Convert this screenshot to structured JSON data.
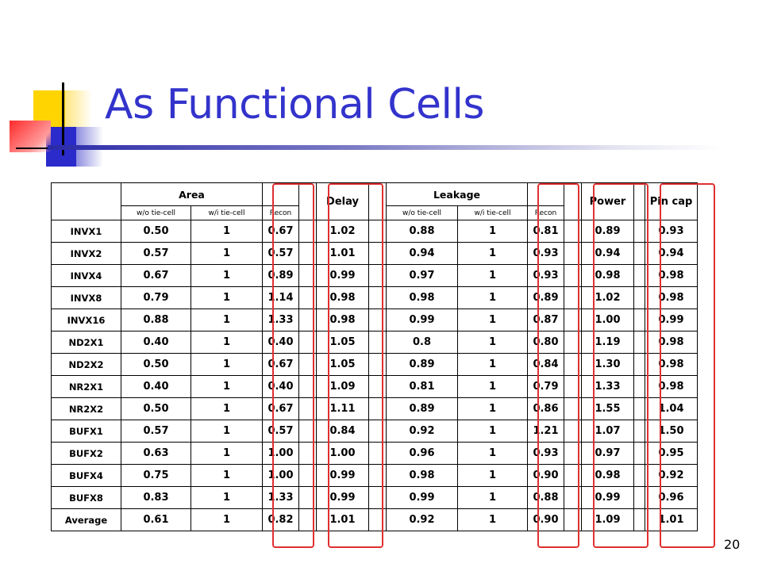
{
  "slide": {
    "title": "As Functional Cells",
    "page_number": "20"
  },
  "table": {
    "headers": {
      "area": "Area",
      "delay": "Delay",
      "leakage": "Leakage",
      "power": "Power",
      "pin_cap": "Pin cap"
    },
    "subheaders": {
      "area": [
        "w/o tie-cell",
        "w/i tie-cell",
        "Recon"
      ],
      "leakage": [
        "w/o tie-cell",
        "w/i tie-cell",
        "Recon"
      ]
    },
    "rows": [
      {
        "cell": "INVX1",
        "area_wo": "0.50",
        "area_wi": "1",
        "area_recon": "0.67",
        "delay": "1.02",
        "leak_wo": "0.88",
        "leak_wi": "1",
        "leak_recon": "0.81",
        "power": "0.89",
        "pincap": "0.93"
      },
      {
        "cell": "INVX2",
        "area_wo": "0.57",
        "area_wi": "1",
        "area_recon": "0.57",
        "delay": "1.01",
        "leak_wo": "0.94",
        "leak_wi": "1",
        "leak_recon": "0.93",
        "power": "0.94",
        "pincap": "0.94"
      },
      {
        "cell": "INVX4",
        "area_wo": "0.67",
        "area_wi": "1",
        "area_recon": "0.89",
        "delay": "0.99",
        "leak_wo": "0.97",
        "leak_wi": "1",
        "leak_recon": "0.93",
        "power": "0.98",
        "pincap": "0.98"
      },
      {
        "cell": "INVX8",
        "area_wo": "0.79",
        "area_wi": "1",
        "area_recon": "1.14",
        "delay": "0.98",
        "leak_wo": "0.98",
        "leak_wi": "1",
        "leak_recon": "0.89",
        "power": "1.02",
        "pincap": "0.98"
      },
      {
        "cell": "INVX16",
        "area_wo": "0.88",
        "area_wi": "1",
        "area_recon": "1.33",
        "delay": "0.98",
        "leak_wo": "0.99",
        "leak_wi": "1",
        "leak_recon": "0.87",
        "power": "1.00",
        "pincap": "0.99"
      },
      {
        "cell": "ND2X1",
        "area_wo": "0.40",
        "area_wi": "1",
        "area_recon": "0.40",
        "delay": "1.05",
        "leak_wo": "0.8",
        "leak_wi": "1",
        "leak_recon": "0.80",
        "power": "1.19",
        "pincap": "0.98"
      },
      {
        "cell": "ND2X2",
        "area_wo": "0.50",
        "area_wi": "1",
        "area_recon": "0.67",
        "delay": "1.05",
        "leak_wo": "0.89",
        "leak_wi": "1",
        "leak_recon": "0.84",
        "power": "1.30",
        "pincap": "0.98"
      },
      {
        "cell": "NR2X1",
        "area_wo": "0.40",
        "area_wi": "1",
        "area_recon": "0.40",
        "delay": "1.09",
        "leak_wo": "0.81",
        "leak_wi": "1",
        "leak_recon": "0.79",
        "power": "1.33",
        "pincap": "0.98"
      },
      {
        "cell": "NR2X2",
        "area_wo": "0.50",
        "area_wi": "1",
        "area_recon": "0.67",
        "delay": "1.11",
        "leak_wo": "0.89",
        "leak_wi": "1",
        "leak_recon": "0.86",
        "power": "1.55",
        "pincap": "1.04"
      },
      {
        "cell": "BUFX1",
        "area_wo": "0.57",
        "area_wi": "1",
        "area_recon": "0.57",
        "delay": "0.84",
        "leak_wo": "0.92",
        "leak_wi": "1",
        "leak_recon": "1.21",
        "power": "1.07",
        "pincap": "1.50"
      },
      {
        "cell": "BUFX2",
        "area_wo": "0.63",
        "area_wi": "1",
        "area_recon": "1.00",
        "delay": "1.00",
        "leak_wo": "0.96",
        "leak_wi": "1",
        "leak_recon": "0.93",
        "power": "0.97",
        "pincap": "0.95"
      },
      {
        "cell": "BUFX4",
        "area_wo": "0.75",
        "area_wi": "1",
        "area_recon": "1.00",
        "delay": "0.99",
        "leak_wo": "0.98",
        "leak_wi": "1",
        "leak_recon": "0.90",
        "power": "0.98",
        "pincap": "0.92"
      },
      {
        "cell": "BUFX8",
        "area_wo": "0.83",
        "area_wi": "1",
        "area_recon": "1.33",
        "delay": "0.99",
        "leak_wo": "0.99",
        "leak_wi": "1",
        "leak_recon": "0.88",
        "power": "0.99",
        "pincap": "0.96"
      },
      {
        "cell": "Average",
        "area_wo": "0.61",
        "area_wi": "1",
        "area_recon": "0.82",
        "delay": "1.01",
        "leak_wo": "0.92",
        "leak_wi": "1",
        "leak_recon": "0.90",
        "power": "1.09",
        "pincap": "1.01"
      }
    ]
  },
  "colors": {
    "title": "#3333cc",
    "highlight": "#e03030",
    "deco_yellow": "#ffd400",
    "deco_blue": "#2b2bcc",
    "deco_red": "#ff5a5a"
  }
}
